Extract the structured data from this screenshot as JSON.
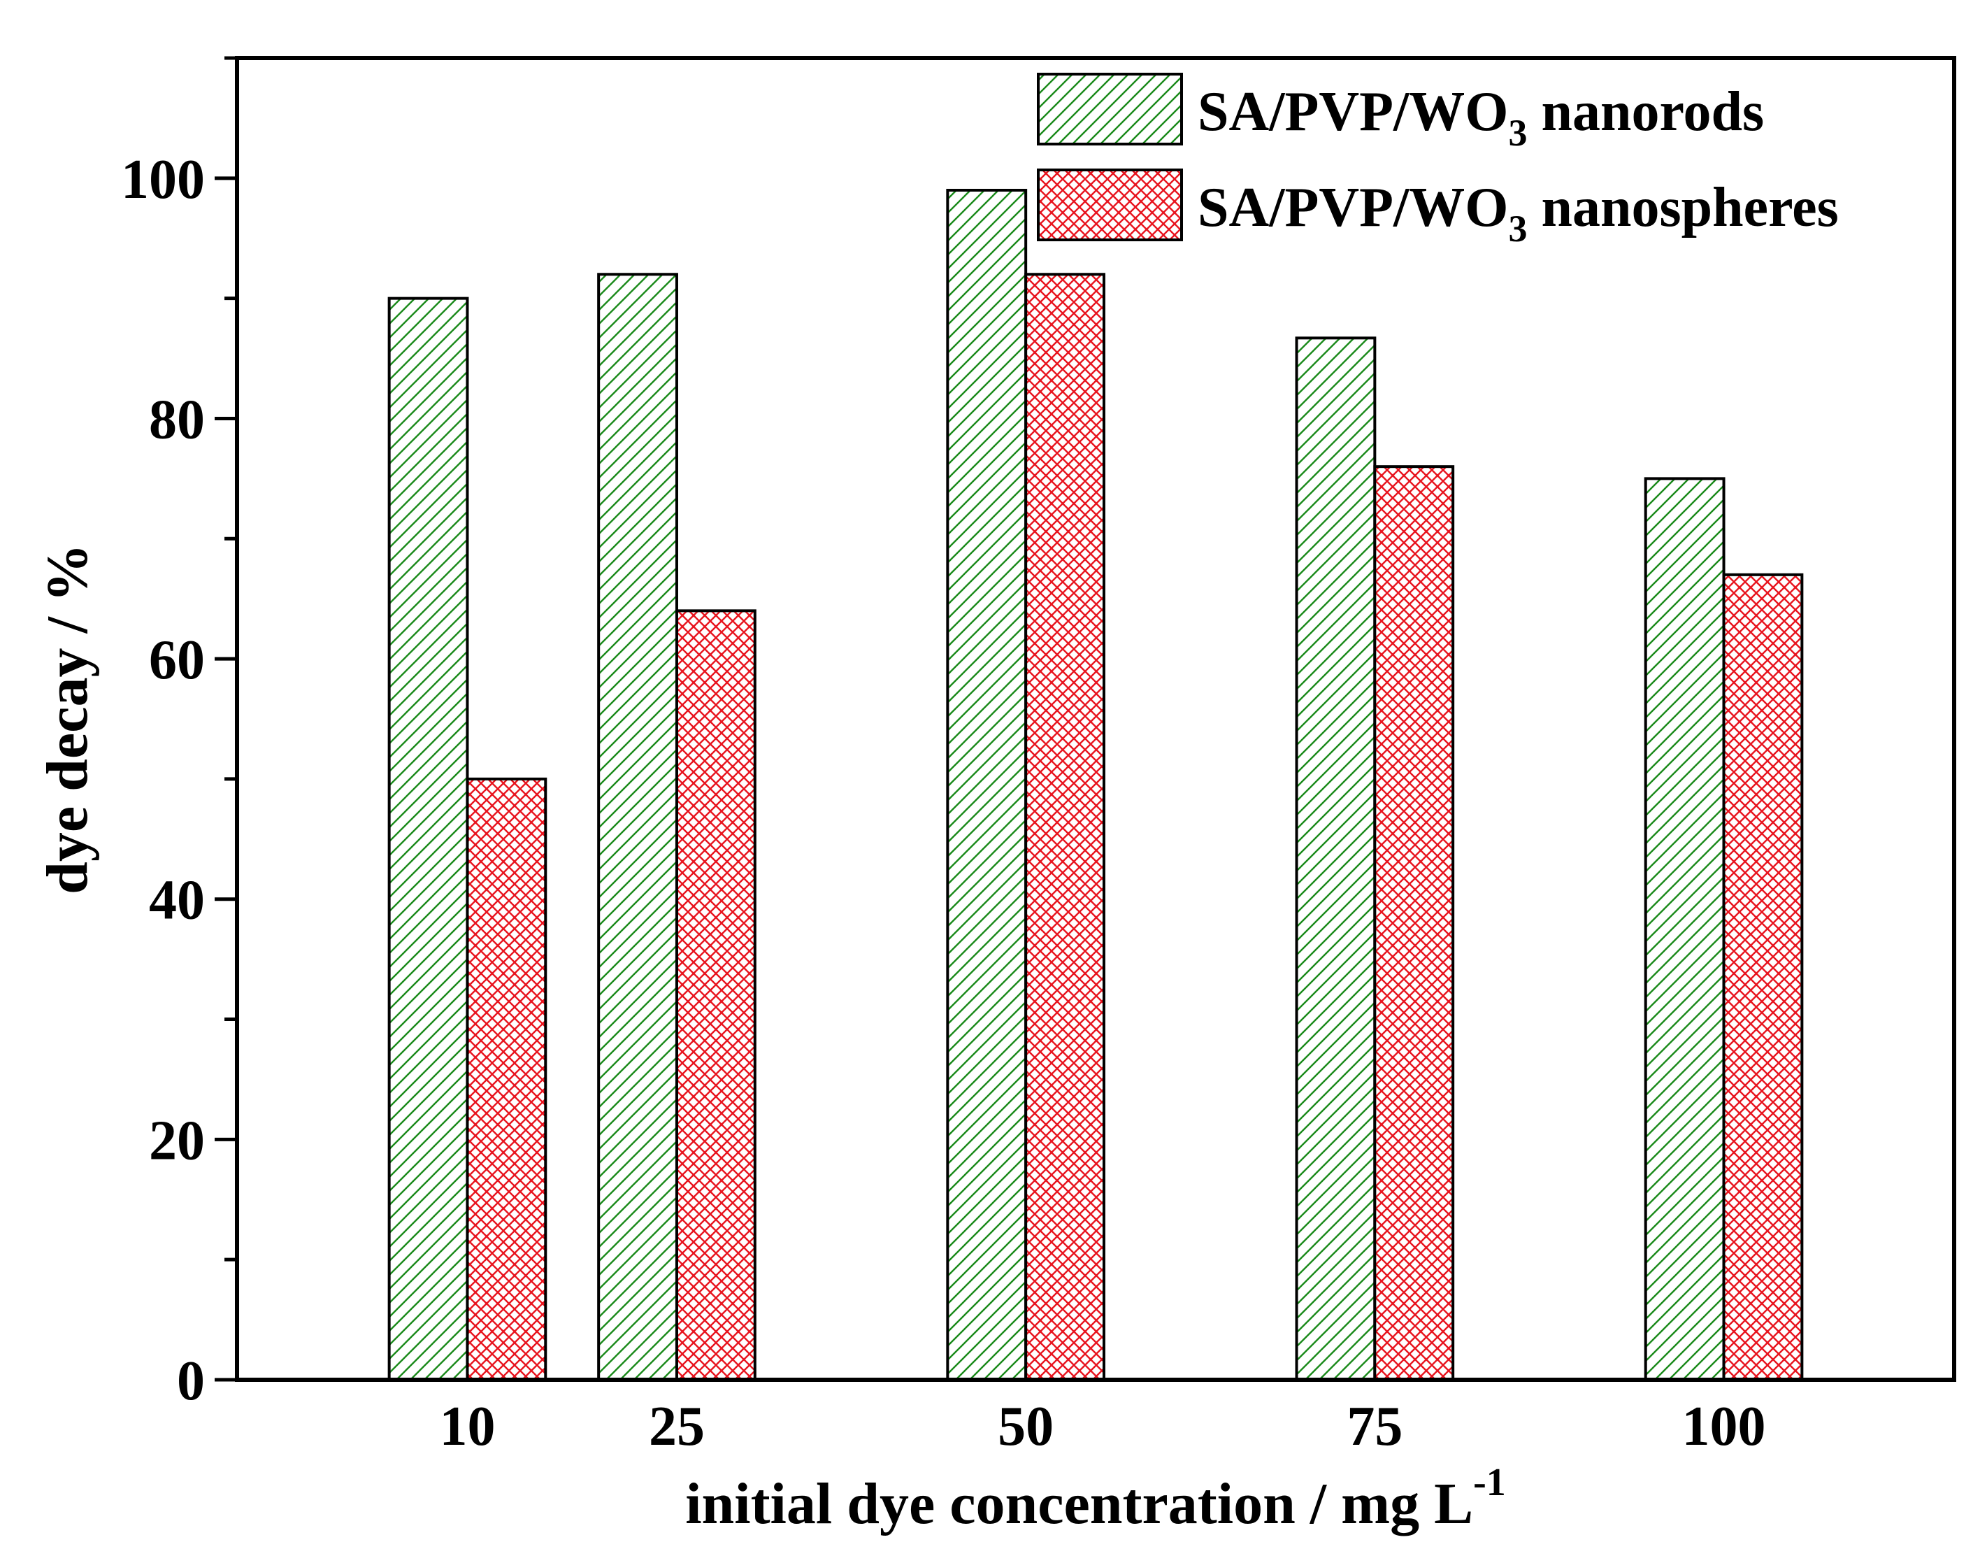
{
  "chart_data": {
    "type": "bar",
    "title": "",
    "xlabel_text": "initial dye concentration / mg L",
    "xlabel_sup": "-1",
    "ylabel": "dye decay / %",
    "categories": [
      {
        "label": "10",
        "value": 10
      },
      {
        "label": "25",
        "value": 25
      },
      {
        "label": "50",
        "value": 50
      },
      {
        "label": "75",
        "value": 75
      },
      {
        "label": "100",
        "value": 100
      }
    ],
    "xlim": [
      -6.5,
      116.5
    ],
    "ylim": [
      0,
      110
    ],
    "yticks": [
      {
        "label": "0",
        "value": 0
      },
      {
        "label": "20",
        "value": 20
      },
      {
        "label": "40",
        "value": 40
      },
      {
        "label": "60",
        "value": 60
      },
      {
        "label": "80",
        "value": 80
      },
      {
        "label": "100",
        "value": 100
      }
    ],
    "yminor_step": 10,
    "bar_width_units": 5.6,
    "series": [
      {
        "name_main": "SA/PVP/WO",
        "name_sub": "3",
        "name_tail": " nanorods",
        "values": [
          90,
          92,
          99,
          86.7,
          75
        ],
        "color": "#1a8a1a",
        "pattern": "diagonal-hatch"
      },
      {
        "name_main": "SA/PVP/WO",
        "name_sub": "3",
        "name_tail": " nanospheres",
        "values": [
          50,
          64,
          92,
          76,
          67
        ],
        "color": "#e8141e",
        "pattern": "cross-hatch"
      }
    ],
    "legend": {
      "position": "top-right"
    },
    "grid": false
  }
}
